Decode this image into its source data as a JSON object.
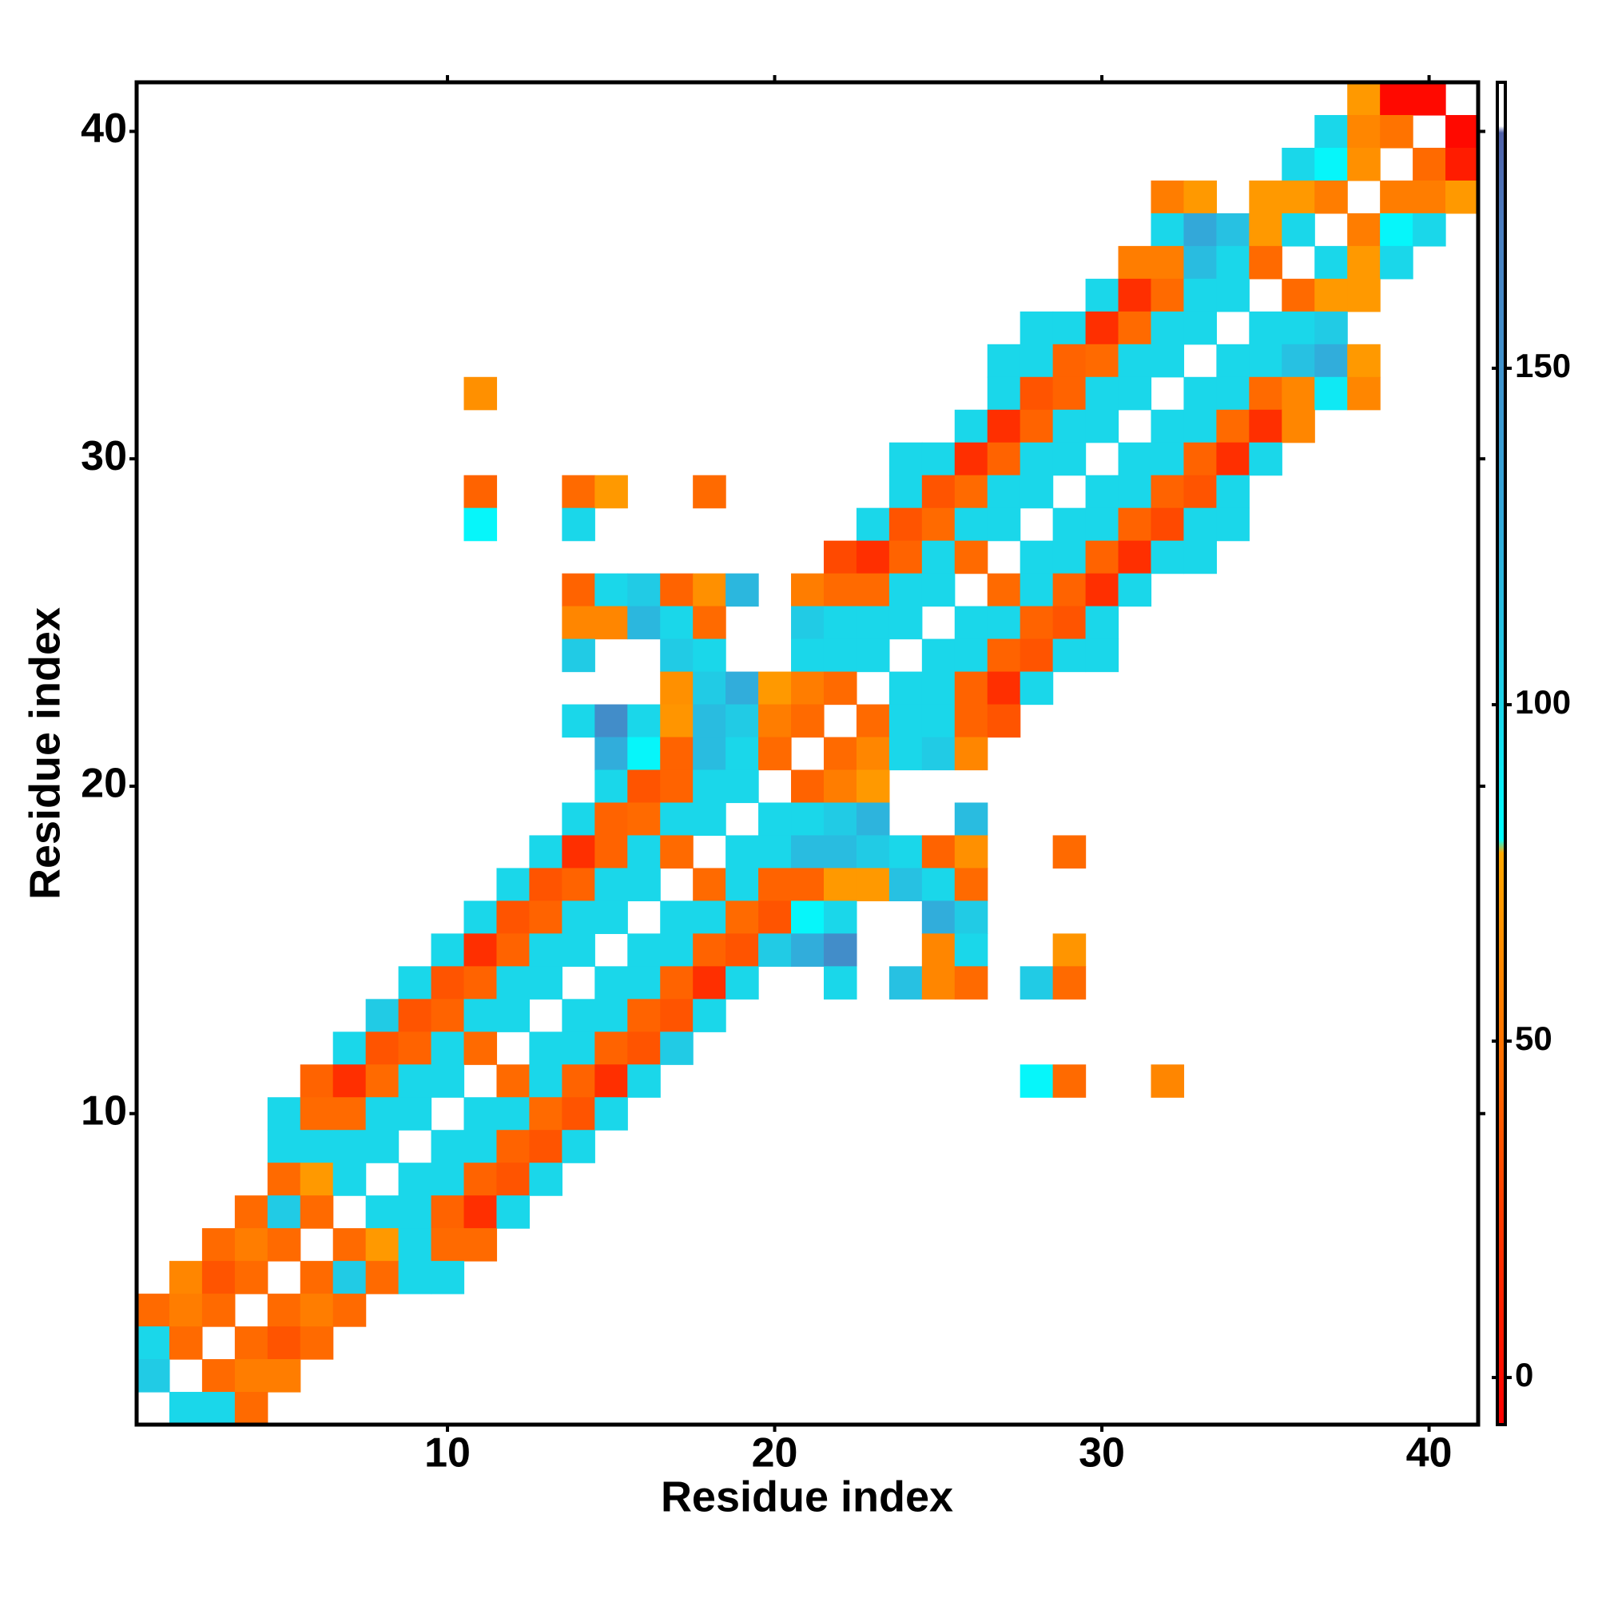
{
  "chart_data": {
    "type": "heatmap",
    "xlabel": "Residue index",
    "ylabel": "Residue index",
    "xlim": [
      0.5,
      41.5
    ],
    "ylim": [
      0.5,
      41.5
    ],
    "xticks": [
      10,
      20,
      30,
      40
    ],
    "yticks": [
      10,
      20,
      30,
      40
    ],
    "rows": [
      {
        "y": 41,
        "x": [
          38,
          39,
          40
        ],
        "values": [
          70,
          -2,
          -2
        ]
      },
      {
        "y": 40,
        "x": [
          37,
          38,
          39,
          41
        ],
        "values": [
          98,
          60,
          50,
          -2
        ]
      },
      {
        "y": 39,
        "x": [
          36,
          37,
          38,
          40,
          41
        ],
        "values": [
          98,
          84,
          65,
          45,
          8
        ]
      },
      {
        "y": 38,
        "x": [
          32,
          33,
          35,
          36,
          37,
          39,
          40,
          41
        ],
        "values": [
          55,
          70,
          70,
          70,
          55,
          55,
          55,
          70
        ]
      },
      {
        "y": 37,
        "x": [
          32,
          33,
          34,
          35,
          36,
          38,
          39,
          40
        ],
        "values": [
          98,
          128,
          112,
          70,
          98,
          55,
          84,
          98
        ]
      },
      {
        "y": 36,
        "x": [
          31,
          32,
          33,
          34,
          35,
          37,
          38,
          39
        ],
        "values": [
          55,
          55,
          115,
          98,
          45,
          98,
          70,
          98
        ]
      },
      {
        "y": 35,
        "x": [
          30,
          31,
          32,
          33,
          34,
          36,
          37,
          38
        ],
        "values": [
          98,
          18,
          45,
          98,
          98,
          45,
          70,
          70
        ]
      },
      {
        "y": 34,
        "x": [
          28,
          29,
          30,
          31,
          32,
          33,
          35,
          36,
          37
        ],
        "values": [
          98,
          98,
          18,
          45,
          98,
          98,
          98,
          98,
          105
        ]
      },
      {
        "y": 33,
        "x": [
          27,
          28,
          29,
          30,
          31,
          32,
          34,
          35,
          36,
          37,
          38
        ],
        "values": [
          98,
          98,
          42,
          45,
          98,
          98,
          98,
          98,
          112,
          125,
          70
        ]
      },
      {
        "y": 32,
        "x": [
          11,
          27,
          28,
          29,
          30,
          31,
          33,
          34,
          35,
          36,
          37,
          38
        ],
        "values": [
          65,
          98,
          35,
          42,
          98,
          98,
          98,
          98,
          45,
          60,
          90,
          60
        ]
      },
      {
        "y": 31,
        "x": [
          26,
          27,
          28,
          29,
          30,
          32,
          33,
          34,
          35,
          36
        ],
        "values": [
          98,
          18,
          42,
          98,
          98,
          98,
          98,
          45,
          18,
          60
        ]
      },
      {
        "y": 30,
        "x": [
          24,
          25,
          26,
          27,
          28,
          29,
          31,
          32,
          33,
          34,
          35
        ],
        "values": [
          98,
          98,
          18,
          42,
          98,
          98,
          98,
          98,
          42,
          18,
          98
        ]
      },
      {
        "y": 29,
        "x": [
          11,
          14,
          15,
          18,
          24,
          25,
          26,
          27,
          28,
          30,
          31,
          32,
          33,
          34
        ],
        "values": [
          42,
          45,
          70,
          45,
          98,
          35,
          45,
          98,
          98,
          98,
          98,
          42,
          35,
          98
        ]
      },
      {
        "y": 28,
        "x": [
          11,
          14,
          23,
          24,
          25,
          26,
          27,
          29,
          30,
          31,
          32,
          33,
          34
        ],
        "values": [
          84,
          98,
          98,
          35,
          45,
          98,
          98,
          98,
          98,
          42,
          30,
          98,
          98
        ]
      },
      {
        "y": 27,
        "x": [
          22,
          23,
          24,
          25,
          26,
          28,
          29,
          30,
          31,
          32,
          33
        ],
        "values": [
          30,
          18,
          42,
          98,
          45,
          98,
          98,
          42,
          18,
          98,
          98
        ]
      },
      {
        "y": 26,
        "x": [
          14,
          15,
          16,
          17,
          18,
          19,
          21,
          22,
          23,
          24,
          25,
          27,
          28,
          29,
          30,
          31
        ],
        "values": [
          42,
          98,
          105,
          42,
          65,
          118,
          55,
          45,
          45,
          98,
          98,
          45,
          98,
          42,
          18,
          98
        ]
      },
      {
        "y": 25,
        "x": [
          14,
          15,
          16,
          17,
          18,
          21,
          22,
          23,
          24,
          26,
          27,
          28,
          29,
          30
        ],
        "values": [
          60,
          60,
          118,
          98,
          45,
          105,
          98,
          98,
          98,
          98,
          98,
          42,
          35,
          98
        ]
      },
      {
        "y": 24,
        "x": [
          14,
          17,
          18,
          21,
          22,
          23,
          25,
          26,
          27,
          28,
          29,
          30
        ],
        "values": [
          105,
          105,
          98,
          98,
          98,
          98,
          98,
          98,
          42,
          35,
          98,
          98
        ]
      },
      {
        "y": 23,
        "x": [
          17,
          18,
          19,
          20,
          21,
          22,
          24,
          25,
          26,
          27,
          28
        ],
        "values": [
          65,
          105,
          125,
          70,
          55,
          45,
          98,
          98,
          42,
          18,
          98
        ]
      },
      {
        "y": 22,
        "x": [
          14,
          15,
          16,
          17,
          18,
          19,
          20,
          21,
          23,
          24,
          25,
          26,
          27
        ],
        "values": [
          98,
          155,
          98,
          68,
          115,
          105,
          55,
          45,
          45,
          98,
          98,
          42,
          35
        ]
      },
      {
        "y": 21,
        "x": [
          15,
          16,
          17,
          18,
          19,
          20,
          22,
          23,
          24,
          25,
          26
        ],
        "values": [
          125,
          84,
          42,
          115,
          98,
          45,
          45,
          60,
          98,
          105,
          60
        ]
      },
      {
        "y": 20,
        "x": [
          15,
          16,
          17,
          18,
          19,
          21,
          22,
          23
        ],
        "values": [
          98,
          35,
          42,
          98,
          98,
          42,
          55,
          70
        ]
      },
      {
        "y": 19,
        "x": [
          14,
          15,
          16,
          17,
          18,
          20,
          21,
          22,
          23,
          26
        ],
        "values": [
          98,
          42,
          45,
          98,
          98,
          98,
          98,
          105,
          120,
          115
        ]
      },
      {
        "y": 18,
        "x": [
          13,
          14,
          15,
          16,
          17,
          19,
          20,
          21,
          22,
          23,
          24,
          25,
          26,
          29
        ],
        "values": [
          98,
          18,
          42,
          98,
          45,
          98,
          98,
          115,
          115,
          105,
          98,
          42,
          65,
          45
        ]
      },
      {
        "y": 17,
        "x": [
          12,
          13,
          14,
          15,
          16,
          18,
          19,
          20,
          21,
          22,
          23,
          24,
          25,
          26
        ],
        "values": [
          98,
          35,
          42,
          98,
          98,
          45,
          98,
          42,
          42,
          70,
          70,
          112,
          98,
          45
        ]
      },
      {
        "y": 16,
        "x": [
          11,
          12,
          13,
          14,
          15,
          17,
          18,
          19,
          20,
          21,
          22,
          25,
          26
        ],
        "values": [
          98,
          35,
          42,
          98,
          98,
          98,
          98,
          45,
          35,
          84,
          98,
          125,
          105
        ]
      },
      {
        "y": 15,
        "x": [
          10,
          11,
          12,
          13,
          14,
          16,
          17,
          18,
          19,
          20,
          21,
          22,
          25,
          26,
          29
        ],
        "values": [
          98,
          18,
          42,
          98,
          98,
          98,
          98,
          42,
          35,
          105,
          125,
          155,
          60,
          98,
          68
        ]
      },
      {
        "y": 14,
        "x": [
          9,
          10,
          11,
          12,
          13,
          15,
          16,
          17,
          18,
          19,
          22,
          24,
          25,
          26,
          28,
          29
        ],
        "values": [
          98,
          35,
          42,
          98,
          98,
          98,
          98,
          42,
          18,
          98,
          98,
          112,
          60,
          45,
          105,
          45
        ]
      },
      {
        "y": 13,
        "x": [
          8,
          9,
          10,
          11,
          12,
          14,
          15,
          16,
          17,
          18
        ],
        "values": [
          105,
          35,
          42,
          98,
          98,
          98,
          98,
          42,
          35,
          98
        ]
      },
      {
        "y": 12,
        "x": [
          7,
          8,
          9,
          10,
          11,
          13,
          14,
          15,
          16,
          17
        ],
        "values": [
          98,
          35,
          42,
          98,
          45,
          98,
          98,
          42,
          35,
          105
        ]
      },
      {
        "y": 11,
        "x": [
          6,
          7,
          8,
          9,
          10,
          12,
          13,
          14,
          15,
          16,
          28,
          29,
          32
        ],
        "values": [
          42,
          18,
          45,
          98,
          98,
          45,
          98,
          42,
          18,
          98,
          84,
          45,
          60
        ]
      },
      {
        "y": 10,
        "x": [
          5,
          6,
          7,
          8,
          9,
          11,
          12,
          13,
          14,
          15
        ],
        "values": [
          98,
          45,
          45,
          98,
          98,
          98,
          98,
          45,
          35,
          98
        ]
      },
      {
        "y": 9,
        "x": [
          5,
          6,
          7,
          8,
          10,
          11,
          12,
          13,
          14
        ],
        "values": [
          98,
          98,
          98,
          98,
          98,
          98,
          42,
          35,
          98
        ]
      },
      {
        "y": 8,
        "x": [
          5,
          6,
          7,
          9,
          10,
          11,
          12,
          13
        ],
        "values": [
          45,
          70,
          98,
          98,
          98,
          42,
          35,
          98
        ]
      },
      {
        "y": 7,
        "x": [
          4,
          5,
          6,
          8,
          9,
          10,
          11,
          12
        ],
        "values": [
          45,
          105,
          45,
          98,
          98,
          42,
          18,
          98
        ]
      },
      {
        "y": 6,
        "x": [
          3,
          4,
          5,
          7,
          8,
          9,
          10,
          11
        ],
        "values": [
          45,
          55,
          45,
          45,
          70,
          98,
          45,
          45
        ]
      },
      {
        "y": 5,
        "x": [
          2,
          3,
          4,
          6,
          7,
          8,
          9,
          10
        ],
        "values": [
          60,
          35,
          45,
          45,
          105,
          45,
          98,
          98
        ]
      },
      {
        "y": 4,
        "x": [
          1,
          2,
          3,
          5,
          6,
          7
        ],
        "values": [
          45,
          55,
          45,
          45,
          55,
          45
        ]
      },
      {
        "y": 3,
        "x": [
          1,
          2,
          4,
          5,
          6
        ],
        "values": [
          98,
          45,
          45,
          35,
          45
        ]
      },
      {
        "y": 2,
        "x": [
          1,
          3,
          4,
          5
        ],
        "values": [
          105,
          45,
          55,
          55
        ]
      },
      {
        "y": 1,
        "x": [
          2,
          3,
          4
        ],
        "values": [
          98,
          98,
          45
        ]
      }
    ],
    "colorbar": {
      "lim": [
        -7,
        192.5
      ],
      "ticks": [
        0,
        50,
        100,
        150
      ],
      "colorscale": [
        [
          -7,
          "#ff0000"
        ],
        [
          20,
          "#ff3300"
        ],
        [
          45,
          "#ff6a00"
        ],
        [
          78,
          "#ffa800"
        ],
        [
          80,
          "#00ffff"
        ],
        [
          100,
          "#1dd3e8"
        ],
        [
          130,
          "#35a5d8"
        ],
        [
          170,
          "#4a7fc0"
        ],
        [
          185,
          "#5060a8"
        ],
        [
          186,
          "#ffffff"
        ],
        [
          192.5,
          "#ffffff"
        ]
      ]
    }
  }
}
